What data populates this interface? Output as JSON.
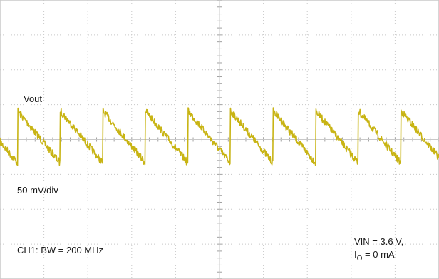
{
  "chart_data": {
    "type": "line",
    "title": "",
    "xlabel": "",
    "ylabel": "",
    "grid": true,
    "divisions": {
      "x": 10,
      "y": 8
    },
    "series": [
      {
        "name": "Vout",
        "color": "#c8b414",
        "ripple": {
          "period_div": 0.97,
          "first_rise_div": 0.4,
          "peak_to_peak_mV": 75,
          "noise_mV": 5,
          "offset_div": 0
        }
      }
    ],
    "colors": {
      "trace": "#c8b414",
      "grid": "#c8c8c8",
      "tick": "#a0a0a0",
      "background": "#ffffff"
    }
  },
  "labels": {
    "trace_name": "Vout",
    "scale": "50 mV/div",
    "channel": "CH1: BW = 200 MHz",
    "vin": "VIN = 3.6 V,",
    "io_prefix": "I",
    "io_sub": "O",
    "io_suffix": " = 0 mA"
  }
}
